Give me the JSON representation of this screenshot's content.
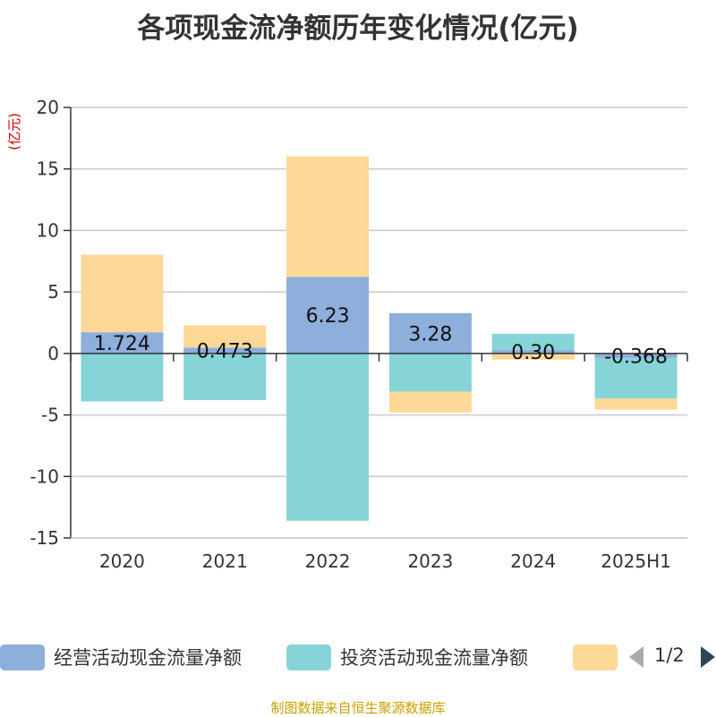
{
  "title": "各项现金流净额历年变化情况(亿元)",
  "unit_label": "(亿元)",
  "source": "制图数据来自恒生聚源数据库",
  "legend": {
    "items": [
      {
        "label": "经营活动现金流量净额",
        "color": "#8eaedc"
      },
      {
        "label": "投资活动现金流量净额",
        "color": "#86d4d7"
      },
      {
        "label": "",
        "color": "#fed897"
      }
    ],
    "page": "1/2"
  },
  "chart_data": {
    "type": "bar",
    "stacked": true,
    "categories": [
      "2020",
      "2021",
      "2022",
      "2023",
      "2024",
      "2025H1"
    ],
    "series": [
      {
        "name": "经营活动现金流量净额",
        "color": "#8eaedc",
        "values": [
          1.724,
          0.473,
          6.23,
          3.28,
          0.3,
          -0.368
        ]
      },
      {
        "name": "投资活动现金流量净额",
        "color": "#86d4d7",
        "values": [
          -3.9,
          -3.8,
          -13.6,
          -3.1,
          1.3,
          -3.3
        ]
      },
      {
        "name": "",
        "color": "#fed897",
        "values": [
          6.3,
          1.8,
          9.8,
          -1.7,
          -0.5,
          -0.9
        ]
      }
    ],
    "data_labels": [
      "1.724",
      "0.473",
      "6.23",
      "3.28",
      "0.30",
      "-0.368"
    ],
    "ylim": [
      -15,
      20
    ],
    "yticks": [
      20,
      15,
      10,
      5,
      0,
      -5,
      -10,
      -15
    ],
    "ylabel": "(亿元)",
    "grid": true,
    "legend": "bottom"
  }
}
